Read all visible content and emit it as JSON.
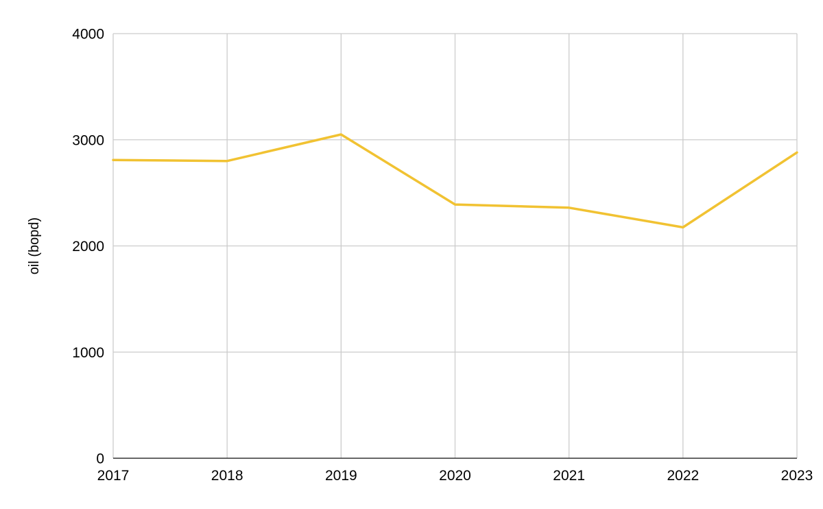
{
  "chart_data": {
    "type": "line",
    "title": "",
    "xlabel": "",
    "ylabel": "oil (bopd)",
    "x": [
      "2017",
      "2018",
      "2019",
      "2020",
      "2021",
      "2022",
      "2023"
    ],
    "series": [
      {
        "values": [
          2810,
          2800,
          3050,
          2390,
          2360,
          2175,
          2880
        ],
        "color": "#f1c232"
      }
    ],
    "ylim": [
      0,
      4000
    ],
    "yticks": [
      0,
      1000,
      2000,
      3000,
      4000
    ],
    "grid": true,
    "legend": "none"
  }
}
